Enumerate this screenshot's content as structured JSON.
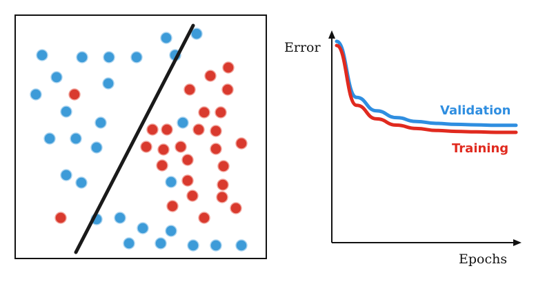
{
  "scatter_panel": {
    "colors": {
      "blue": "#3d9bd8",
      "red": "#d93a2e",
      "line": "#1a1a1a"
    },
    "blue_points": [
      [
        241,
        55
      ],
      [
        285,
        49
      ],
      [
        61,
        80
      ],
      [
        119,
        83
      ],
      [
        158,
        83
      ],
      [
        198,
        83
      ],
      [
        254,
        80
      ],
      [
        82,
        112
      ],
      [
        157,
        121
      ],
      [
        52,
        137
      ],
      [
        96,
        162
      ],
      [
        146,
        178
      ],
      [
        265,
        178
      ],
      [
        72,
        201
      ],
      [
        110,
        201
      ],
      [
        140,
        214
      ],
      [
        96,
        254
      ],
      [
        118,
        265
      ],
      [
        248,
        264
      ],
      [
        140,
        318
      ],
      [
        174,
        316
      ],
      [
        207,
        331
      ],
      [
        248,
        335
      ],
      [
        187,
        353
      ],
      [
        233,
        353
      ],
      [
        280,
        356
      ],
      [
        313,
        356
      ],
      [
        350,
        356
      ]
    ],
    "red_points": [
      [
        331,
        98
      ],
      [
        305,
        110
      ],
      [
        275,
        130
      ],
      [
        330,
        130
      ],
      [
        108,
        137
      ],
      [
        296,
        163
      ],
      [
        320,
        163
      ],
      [
        221,
        188
      ],
      [
        242,
        188
      ],
      [
        288,
        188
      ],
      [
        313,
        190
      ],
      [
        350,
        208
      ],
      [
        212,
        213
      ],
      [
        237,
        217
      ],
      [
        262,
        213
      ],
      [
        313,
        216
      ],
      [
        235,
        240
      ],
      [
        272,
        232
      ],
      [
        324,
        241
      ],
      [
        272,
        262
      ],
      [
        323,
        268
      ],
      [
        279,
        284
      ],
      [
        250,
        299
      ],
      [
        322,
        286
      ],
      [
        342,
        302
      ],
      [
        88,
        316
      ],
      [
        296,
        316
      ]
    ]
  },
  "learning_curve": {
    "ylabel": "Error",
    "xlabel": "Epochs",
    "series": [
      {
        "name": "Validation",
        "color": "#2f8ee0",
        "values": [
          1.0,
          0.42,
          0.28,
          0.21,
          0.17,
          0.15,
          0.14,
          0.135,
          0.13,
          0.13
        ]
      },
      {
        "name": "Training",
        "color": "#e02a1f",
        "values": [
          1.0,
          0.38,
          0.24,
          0.175,
          0.14,
          0.12,
          0.11,
          0.105,
          0.1,
          0.1
        ]
      }
    ]
  }
}
